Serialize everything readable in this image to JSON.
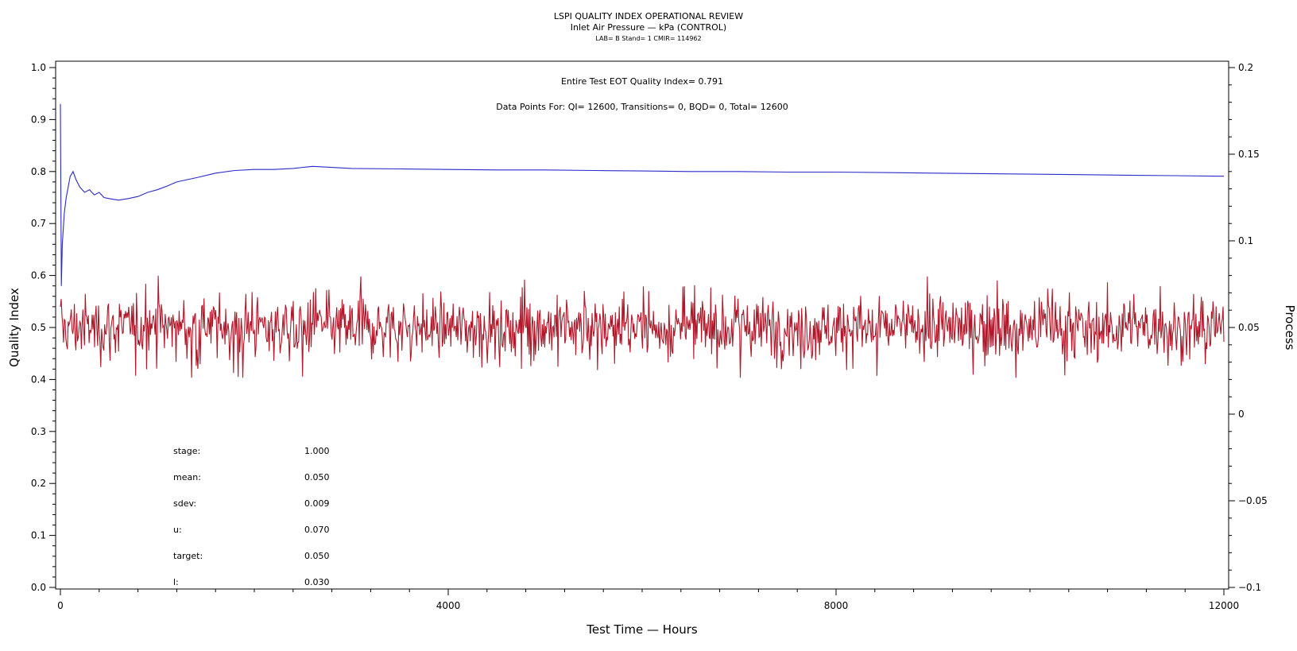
{
  "chart_data": {
    "type": "line",
    "title": "LSPI QUALITY INDEX OPERATIONAL REVIEW",
    "subtitle": "Inlet Air Pressure — kPa (CONTROL)",
    "subtitle2": "LAB= B Stand= 1 CMIR= 114962",
    "xlabel": "Test Time — Hours",
    "ylabel_left": "Quality Index",
    "ylabel_right": "Process",
    "xlim": [
      0,
      12000
    ],
    "ylim_left": [
      0,
      1.0
    ],
    "ylim_right": [
      -0.1,
      0.2
    ],
    "x_ticks": [
      "0",
      "4000",
      "8000",
      "12000"
    ],
    "y_left_ticks": [
      "0.0",
      "0.1",
      "0.2",
      "0.3",
      "0.4",
      "0.5",
      "0.6",
      "0.7",
      "0.8",
      "0.9",
      "1.0"
    ],
    "y_right_ticks": [
      "−0.1",
      "−0.05",
      "0",
      "0.05",
      "0.1",
      "0.15",
      "0.2"
    ],
    "annotation_qi": "Entire Test EOT Quality Index=   0.791",
    "annotation_points": "Data Points For: QI= 12600, Transitions=     0, BQD=     0, Total= 12600",
    "stats": [
      {
        "label": "stage:",
        "value": "1.000"
      },
      {
        "label": "mean:",
        "value": "0.050"
      },
      {
        "label": "sdev:",
        "value": "0.009"
      },
      {
        "label": "u:",
        "value": "0.070"
      },
      {
        "label": "target:",
        "value": "0.050"
      },
      {
        "label": "l:",
        "value": "0.030"
      }
    ],
    "series": [
      {
        "axis": "left",
        "color": "#2b2bc8",
        "x": [
          0,
          10,
          20,
          40,
          60,
          80,
          100,
          130,
          160,
          200,
          250,
          300,
          350,
          400,
          450,
          500,
          600,
          700,
          800,
          900,
          1000,
          1100,
          1200,
          1400,
          1600,
          1800,
          2000,
          2200,
          2400,
          2600,
          2800,
          3000,
          3500,
          4000,
          4500,
          5000,
          5500,
          6000,
          6500,
          7000,
          7500,
          8000,
          8500,
          9000,
          9500,
          10000,
          10500,
          11000,
          11500,
          12000
        ],
        "values": [
          0.93,
          0.58,
          0.66,
          0.72,
          0.75,
          0.77,
          0.79,
          0.8,
          0.785,
          0.77,
          0.76,
          0.765,
          0.755,
          0.76,
          0.75,
          0.748,
          0.745,
          0.748,
          0.752,
          0.76,
          0.765,
          0.772,
          0.78,
          0.788,
          0.797,
          0.802,
          0.804,
          0.804,
          0.806,
          0.81,
          0.808,
          0.806,
          0.805,
          0.804,
          0.803,
          0.803,
          0.802,
          0.801,
          0.8,
          0.8,
          0.799,
          0.799,
          0.798,
          0.797,
          0.796,
          0.795,
          0.794,
          0.793,
          0.792,
          0.791
        ]
      },
      {
        "axis": "right",
        "color": "#b0182a",
        "description_values": {
          "mean": 0.05,
          "sdev": 0.009,
          "min": 0.021,
          "max": 0.081,
          "count": 12600
        }
      }
    ],
    "legend": "none",
    "grid": false
  }
}
